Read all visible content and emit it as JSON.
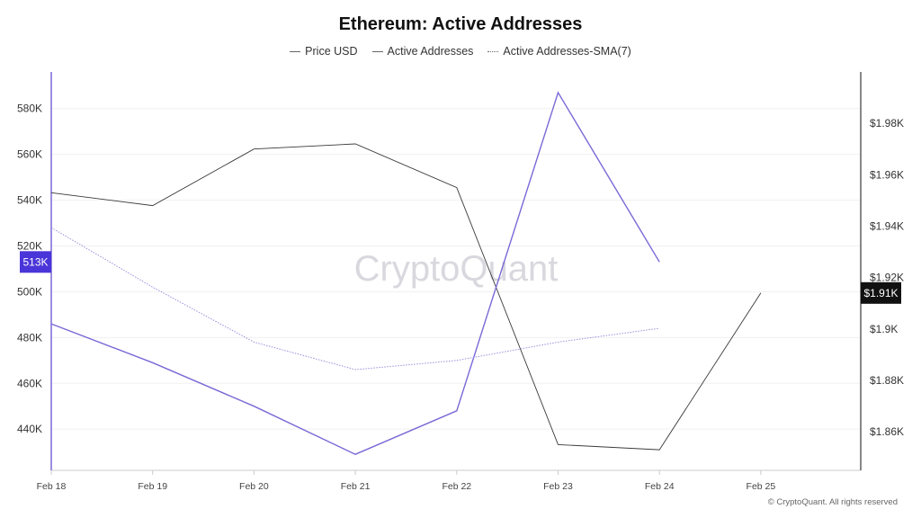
{
  "chart_data": {
    "type": "line",
    "title": "Ethereum: Active Addresses",
    "x": [
      "Feb 18",
      "Feb 19",
      "Feb 20",
      "Feb 21",
      "Feb 22",
      "Feb 23",
      "Feb 24",
      "Feb 25"
    ],
    "series": [
      {
        "name": "Price USD",
        "axis": "right",
        "color": "#3a3a3a",
        "style": "solid",
        "values": [
          1953,
          1948,
          1970,
          1972,
          1955,
          1855,
          1853,
          1914
        ]
      },
      {
        "name": "Active Addresses",
        "axis": "left",
        "color": "#7b68d6",
        "style": "solid",
        "values": [
          486000,
          469000,
          450000,
          429000,
          448000,
          587000,
          513000,
          null
        ]
      },
      {
        "name": "Active Addresses-SMA(7)",
        "axis": "left",
        "color": "#9a8fdc",
        "style": "dotted",
        "values": [
          528000,
          502000,
          478000,
          466000,
          470000,
          478000,
          484000,
          null
        ]
      }
    ],
    "y_left": {
      "range": [
        422000,
        596000
      ],
      "ticks": [
        440000,
        460000,
        480000,
        500000,
        520000,
        540000,
        560000,
        580000
      ],
      "tick_labels": [
        "440K",
        "460K",
        "480K",
        "500K",
        "520K",
        "540K",
        "560K",
        "580K"
      ]
    },
    "y_right": {
      "range": [
        1845,
        2000
      ],
      "ticks": [
        1860,
        1880,
        1900,
        1920,
        1940,
        1960,
        1980
      ],
      "tick_labels": [
        "$1.86K",
        "$1.88K",
        "$1.9K",
        "$1.92K",
        "$1.94K",
        "$1.96K",
        "$1.98K"
      ]
    },
    "current_value_left": {
      "value": 513000,
      "label": "513K",
      "color": "#4a35d8"
    },
    "current_value_right": {
      "value": 1914,
      "label": "$1.91K",
      "color": "#111111"
    },
    "legend_position": "top-center",
    "grid": true
  },
  "watermark": "CryptoQuant",
  "footer": "© CryptoQuant. All rights reserved"
}
